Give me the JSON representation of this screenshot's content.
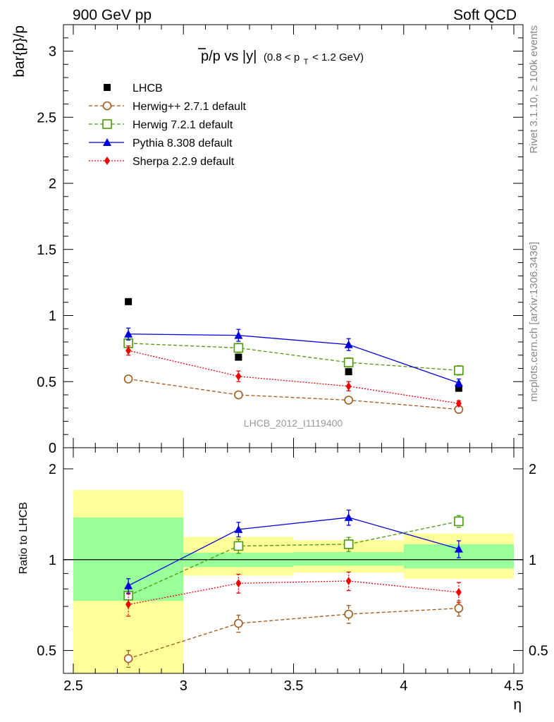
{
  "header": {
    "left": "900 GeV pp",
    "right": "Soft QCD"
  },
  "side_labels": {
    "rivet": "Rivet 3.1.10, ≥ 100k events",
    "mcplots": "mcplots.cern.ch [arXiv:1306.3436]"
  },
  "chart_data": [
    {
      "type": "scatter",
      "title": "p̄/p vs |y|",
      "title_main": "p/p vs |y|",
      "title_overbar_letter": "p",
      "title_range_prefix": "(0.8 < p",
      "title_range_sub": "T",
      "title_range_suffix": " < 1.2 GeV)",
      "ylabel": "bar{p}/p",
      "ylim": [
        0,
        3.2
      ],
      "yticks": [
        0,
        0.5,
        1,
        1.5,
        2,
        2.5,
        3
      ],
      "ytick_labels": [
        "0",
        "0.5",
        "1",
        "1.5",
        "2",
        "2.5",
        "3"
      ],
      "xlim": [
        2.5,
        4.5
      ],
      "watermark": "LHCB_2012_I1119400",
      "legend_position": "top-left",
      "x": [
        2.75,
        3.25,
        3.75,
        4.25
      ],
      "series": [
        {
          "name": "LHCB",
          "color": "#000000",
          "marker": "square-filled",
          "line": "none",
          "values": [
            1.105,
            0.685,
            0.575,
            0.45
          ],
          "errors": [
            0.0,
            0.0,
            0.0,
            0.0
          ]
        },
        {
          "name": "Herwig++ 2.7.1 default",
          "color": "#a0581c",
          "marker": "circle-open",
          "line": "dashed",
          "values": [
            0.52,
            0.4,
            0.36,
            0.29
          ],
          "errors": [
            0.02,
            0.015,
            0.015,
            0.012
          ]
        },
        {
          "name": "Herwig 7.2.1 default",
          "color": "#4a9a0a",
          "marker": "square-open",
          "line": "dashed",
          "values": [
            0.79,
            0.755,
            0.645,
            0.585
          ],
          "errors": [
            0.03,
            0.035,
            0.035,
            0.035
          ]
        },
        {
          "name": "Pythia 8.308 default",
          "color": "#0000dd",
          "marker": "triangle-filled",
          "line": "solid",
          "values": [
            0.86,
            0.85,
            0.78,
            0.49
          ],
          "errors": [
            0.045,
            0.045,
            0.045,
            0.03
          ]
        },
        {
          "name": "Sherpa 2.2.9 default",
          "color": "#ee0000",
          "marker": "diamond-filled",
          "line": "dotted",
          "values": [
            0.735,
            0.54,
            0.465,
            0.335
          ],
          "errors": [
            0.035,
            0.04,
            0.035,
            0.02
          ]
        }
      ]
    },
    {
      "type": "scatter",
      "title": "",
      "ylabel": "Ratio to LHCB",
      "xlabel": "η",
      "yscale": "log",
      "ylim": [
        0.42,
        2.35
      ],
      "yticks": [
        0.5,
        1,
        2
      ],
      "ytick_labels": [
        "0.5",
        "1",
        "2"
      ],
      "xlim": [
        2.5,
        4.5
      ],
      "xticks": [
        2.5,
        3,
        3.5,
        4,
        4.5
      ],
      "xtick_labels": [
        "2.5",
        "3",
        "3.5",
        "4",
        "4.5"
      ],
      "reference_line": 1,
      "uncertainty_bands": [
        {
          "x0": 2.5,
          "x1": 3.0,
          "stat": [
            0.73,
            1.38
          ],
          "total": [
            0.42,
            1.7
          ]
        },
        {
          "x0": 3.0,
          "x1": 3.5,
          "stat": [
            0.945,
            1.055
          ],
          "total": [
            0.885,
            1.19
          ]
        },
        {
          "x0": 3.5,
          "x1": 4.0,
          "stat": [
            0.955,
            1.06
          ],
          "total": [
            0.905,
            1.16
          ]
        },
        {
          "x0": 4.0,
          "x1": 4.5,
          "stat": [
            0.935,
            1.125
          ],
          "total": [
            0.865,
            1.22
          ]
        }
      ],
      "x": [
        2.75,
        3.25,
        3.75,
        4.25
      ],
      "series": [
        {
          "name": "Herwig++ 2.7.1 default",
          "color": "#a0581c",
          "marker": "circle-open",
          "line": "dashed",
          "values": [
            0.47,
            0.615,
            0.66,
            0.69
          ],
          "errors": [
            0.03,
            0.04,
            0.045,
            0.04
          ]
        },
        {
          "name": "Herwig 7.2.1 default",
          "color": "#4a9a0a",
          "marker": "square-open",
          "line": "dashed",
          "values": [
            0.76,
            1.11,
            1.125,
            1.34
          ],
          "errors": [
            0.04,
            0.06,
            0.06,
            0.06
          ]
        },
        {
          "name": "Pythia 8.308 default",
          "color": "#0000dd",
          "marker": "triangle-filled",
          "line": "solid",
          "values": [
            0.82,
            1.26,
            1.38,
            1.085
          ],
          "errors": [
            0.045,
            0.07,
            0.08,
            0.07
          ]
        },
        {
          "name": "Sherpa 2.2.9 default",
          "color": "#ee0000",
          "marker": "diamond-filled",
          "line": "dotted",
          "values": [
            0.71,
            0.835,
            0.85,
            0.78
          ],
          "errors": [
            0.06,
            0.06,
            0.06,
            0.06
          ]
        }
      ]
    }
  ]
}
